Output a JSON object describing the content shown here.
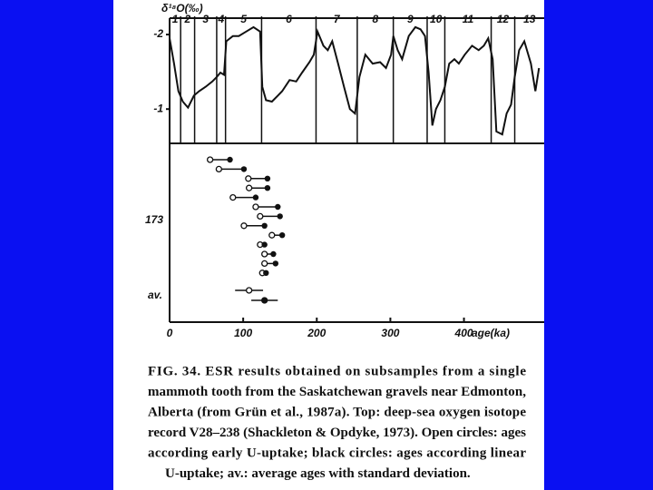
{
  "chart_data": [
    {
      "type": "line",
      "y_label": "δ¹⁸O(‰)",
      "color": "#111111",
      "xlim": [
        0,
        509
      ],
      "ylim": [
        -0.54,
        -2.22
      ],
      "yticks": [
        -2,
        -1
      ],
      "stage_boundaries": [
        15,
        34,
        64,
        76,
        125,
        199,
        255,
        304,
        350,
        374,
        437,
        469
      ],
      "stage_labels": [
        "1",
        "2",
        "3",
        "4",
        "5",
        "6",
        "7",
        "8",
        "9",
        "10",
        "11",
        "12",
        "13"
      ],
      "x": [
        0,
        6,
        12,
        18,
        25,
        33,
        40,
        49,
        58,
        64,
        69,
        74,
        77,
        86,
        94,
        104,
        114,
        123,
        126,
        131,
        139,
        147,
        153,
        163,
        172,
        180,
        190,
        196,
        201,
        209,
        215,
        221,
        229,
        237,
        245,
        252,
        258,
        266,
        276,
        286,
        294,
        301,
        304,
        310,
        316,
        325,
        334,
        341,
        347,
        352,
        357,
        362,
        368,
        374,
        380,
        387,
        393,
        401,
        411,
        420,
        427,
        433,
        439,
        444,
        452,
        458,
        464,
        469,
        475,
        482,
        491,
        497,
        502
      ],
      "values": [
        -1.95,
        -1.61,
        -1.24,
        -1.1,
        -1.02,
        -1.18,
        -1.24,
        -1.3,
        -1.37,
        -1.43,
        -1.49,
        -1.46,
        -1.91,
        -1.98,
        -1.98,
        -2.04,
        -2.1,
        -2.04,
        -1.3,
        -1.12,
        -1.1,
        -1.18,
        -1.24,
        -1.39,
        -1.37,
        -1.49,
        -1.63,
        -1.73,
        -2.04,
        -1.85,
        -1.79,
        -1.91,
        -1.61,
        -1.3,
        -1.0,
        -0.94,
        -1.43,
        -1.73,
        -1.61,
        -1.63,
        -1.55,
        -1.73,
        -1.98,
        -1.79,
        -1.67,
        -1.98,
        -2.1,
        -2.07,
        -1.98,
        -1.49,
        -0.78,
        -1.0,
        -1.12,
        -1.3,
        -1.61,
        -1.67,
        -1.61,
        -1.73,
        -1.85,
        -1.79,
        -1.85,
        -1.95,
        -1.67,
        -0.7,
        -0.66,
        -0.94,
        -1.06,
        -1.43,
        -1.79,
        -1.91,
        -1.61,
        -1.24,
        -1.55
      ]
    },
    {
      "type": "dumbbell",
      "x_label": "age(ka)",
      "xlim": [
        0,
        509
      ],
      "xticks": [
        0,
        100,
        200,
        300,
        400
      ],
      "sample_label": "173",
      "early": [
        55,
        67,
        107,
        108,
        86,
        117,
        123,
        101,
        139,
        123,
        129,
        129,
        126
      ],
      "linear": [
        82,
        101,
        133,
        133,
        117,
        147,
        150,
        129,
        153,
        129,
        141,
        144,
        131
      ],
      "average_label": "av.",
      "average_values": [
        108,
        129
      ],
      "average_errors": [
        19,
        18
      ]
    }
  ],
  "caption": {
    "lines": [
      "FIG. 34. ESR results obtained on subsamples from a single",
      "mammoth tooth from the Saskatchewan gravels near Edmonton,",
      "Alberta (from Grün et al., 1987a). Top: deep-sea oxygen isotope",
      "record V28–238 (Shackleton & Opdyke, 1973). Open circles: ages",
      "according early U-uptake; black circles: ages according linear",
      "U-uptake; av.: average ages with standard deviation."
    ]
  }
}
